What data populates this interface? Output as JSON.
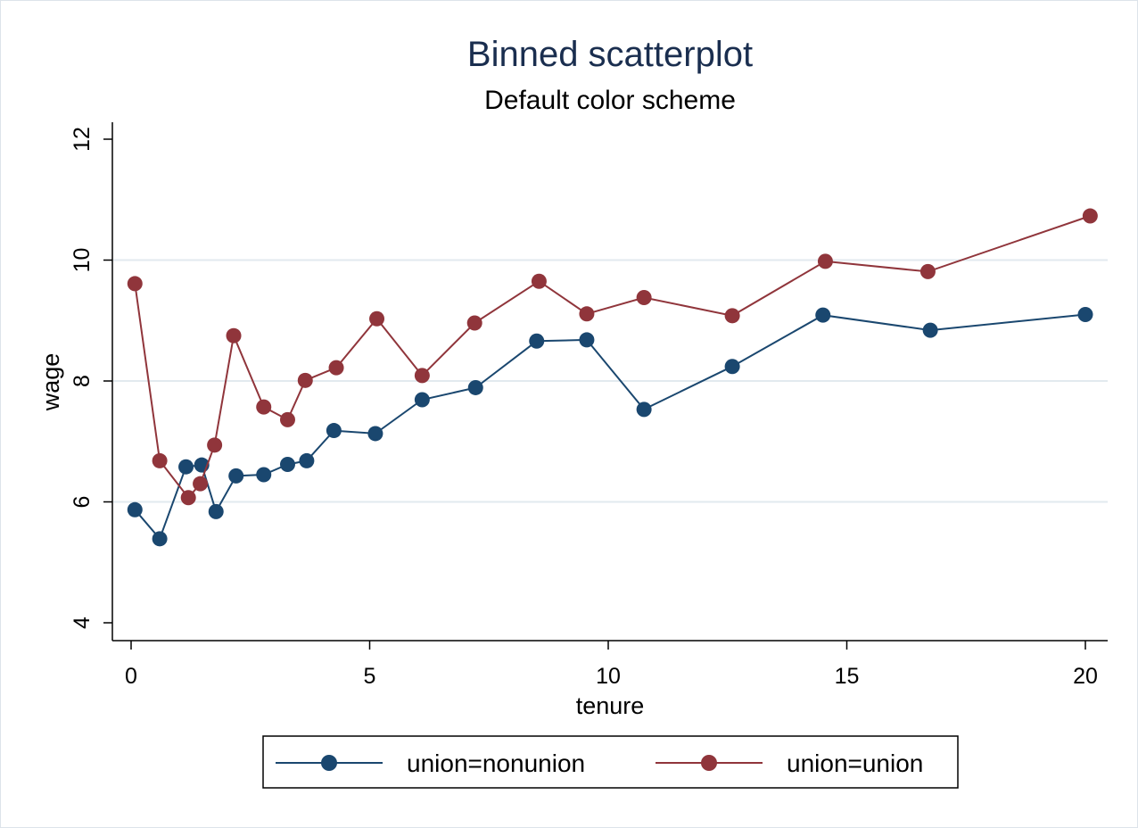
{
  "chart_data": {
    "type": "scatter",
    "title": "Binned scatterplot",
    "subtitle": "Default color scheme",
    "xlabel": "tenure",
    "ylabel": "wage",
    "xlim": [
      0,
      20
    ],
    "ylim": [
      4,
      12
    ],
    "xticks": [
      0,
      5,
      10,
      15,
      20
    ],
    "yticks": [
      4,
      6,
      8,
      10,
      12
    ],
    "grid": true,
    "legend_position": "bottom",
    "series": [
      {
        "name": "union=nonunion",
        "color": "#1a476f",
        "x": [
          0.08,
          0.6,
          1.15,
          1.48,
          1.78,
          2.2,
          2.78,
          3.28,
          3.68,
          4.25,
          5.12,
          6.1,
          7.22,
          8.5,
          9.55,
          10.75,
          12.6,
          14.5,
          16.75,
          20.0
        ],
        "y": [
          5.87,
          5.39,
          6.58,
          6.61,
          5.84,
          6.43,
          6.45,
          6.62,
          6.68,
          7.18,
          7.13,
          7.69,
          7.89,
          8.66,
          8.68,
          7.53,
          8.24,
          9.09,
          8.84,
          9.1
        ]
      },
      {
        "name": "union=union",
        "color": "#90353b",
        "x": [
          0.08,
          0.6,
          1.2,
          1.45,
          1.75,
          2.15,
          2.78,
          3.28,
          3.65,
          4.3,
          5.15,
          6.1,
          7.2,
          8.55,
          9.55,
          10.75,
          12.6,
          14.55,
          16.7,
          20.1
        ],
        "y": [
          9.61,
          6.68,
          6.07,
          6.3,
          6.94,
          8.75,
          7.57,
          7.36,
          8.01,
          8.22,
          9.03,
          8.09,
          8.96,
          9.65,
          9.11,
          9.38,
          9.08,
          9.98,
          9.81,
          10.73
        ]
      }
    ]
  }
}
